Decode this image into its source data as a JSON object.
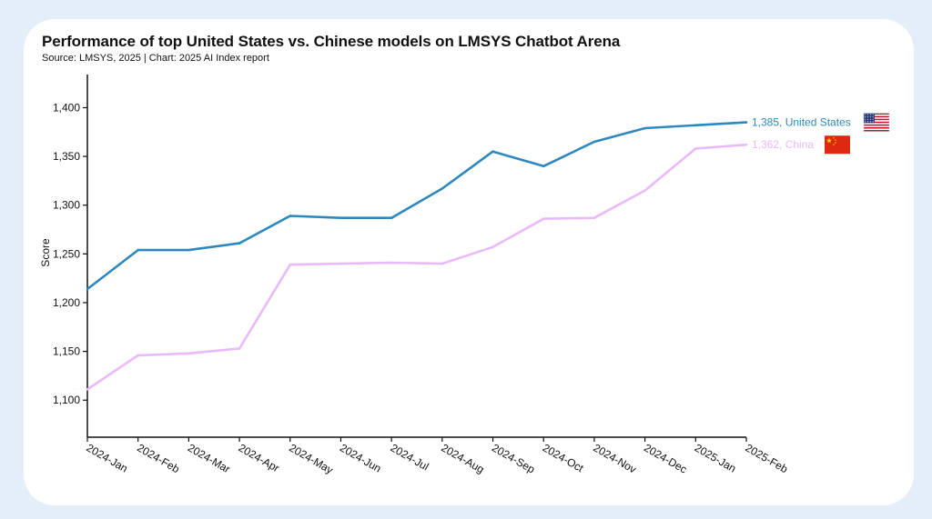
{
  "chart_data": {
    "type": "line",
    "title": "Performance of top United States vs. Chinese models on LMSYS Chatbot Arena",
    "subtitle": "Source: LMSYS, 2025 | Chart: 2025 AI Index report",
    "xlabel": "",
    "ylabel": "Score",
    "ylim": [
      1062,
      1434
    ],
    "yticks": [
      1100,
      1150,
      1200,
      1250,
      1300,
      1350,
      1400
    ],
    "ytick_labels": [
      "1,100",
      "1,150",
      "1,200",
      "1,250",
      "1,300",
      "1,350",
      "1,400"
    ],
    "categories": [
      "2024-Jan",
      "2024-Feb",
      "2024-Mar",
      "2024-Apr",
      "2024-May",
      "2024-Jun",
      "2024-Jul",
      "2024-Aug",
      "2024-Sep",
      "2024-Oct",
      "2024-Nov",
      "2024-Dec",
      "2025-Jan",
      "2025-Feb"
    ],
    "grid": false,
    "legend": "end-of-line labels",
    "series": [
      {
        "name": "United States",
        "color": "#2e88c0",
        "flag_icon": "us-flag-icon",
        "end_label": "1,385, United States",
        "values": [
          1214,
          1254,
          1254,
          1261,
          1289,
          1287,
          1287,
          1317,
          1355,
          1340,
          1365,
          1379,
          1382,
          1385
        ]
      },
      {
        "name": "China",
        "color": "#eab9fa",
        "flag_icon": "china-flag-icon",
        "end_label": "1,362, China",
        "values": [
          1111,
          1146,
          1148,
          1153,
          1239,
          1240,
          1241,
          1240,
          1257,
          1286,
          1287,
          1315,
          1358,
          1362
        ]
      }
    ]
  }
}
